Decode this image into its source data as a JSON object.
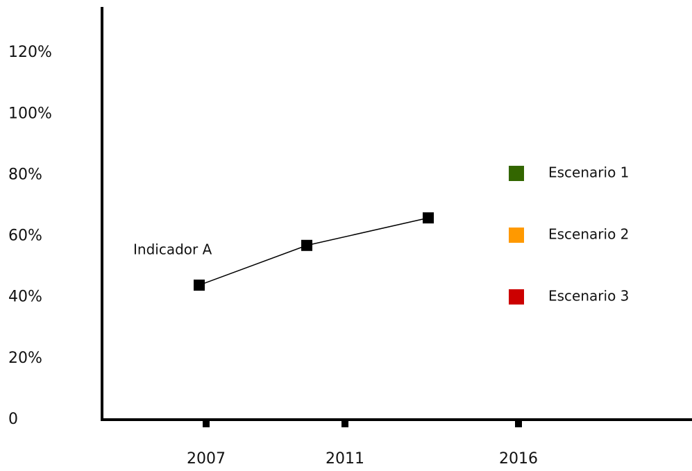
{
  "chart_data": {
    "type": "line",
    "x": [
      2006.8,
      2009.9,
      2013.4
    ],
    "series": [
      {
        "name": "Indicador A",
        "color": "#000000",
        "values": [
          44,
          57,
          66
        ]
      }
    ],
    "xlim": [
      2004,
      2021
    ],
    "xticks": [
      2007,
      2011,
      2016
    ],
    "ylim": [
      0,
      135
    ],
    "yticks": [
      0,
      {
        "value": 20,
        "label": "20%"
      },
      {
        "value": 40,
        "label": "40%"
      },
      {
        "value": 60,
        "label": "60%"
      },
      {
        "value": 80,
        "label": "80%"
      },
      {
        "value": 100,
        "label": "100%"
      },
      {
        "value": 120,
        "label": "120%"
      }
    ],
    "grid": false,
    "legend": [
      {
        "name": "Escenario 1",
        "color": "#336600"
      },
      {
        "name": "Escenario 2",
        "color": "#ff9900"
      },
      {
        "name": "Escenario 3",
        "color": "#cc0000"
      }
    ]
  }
}
